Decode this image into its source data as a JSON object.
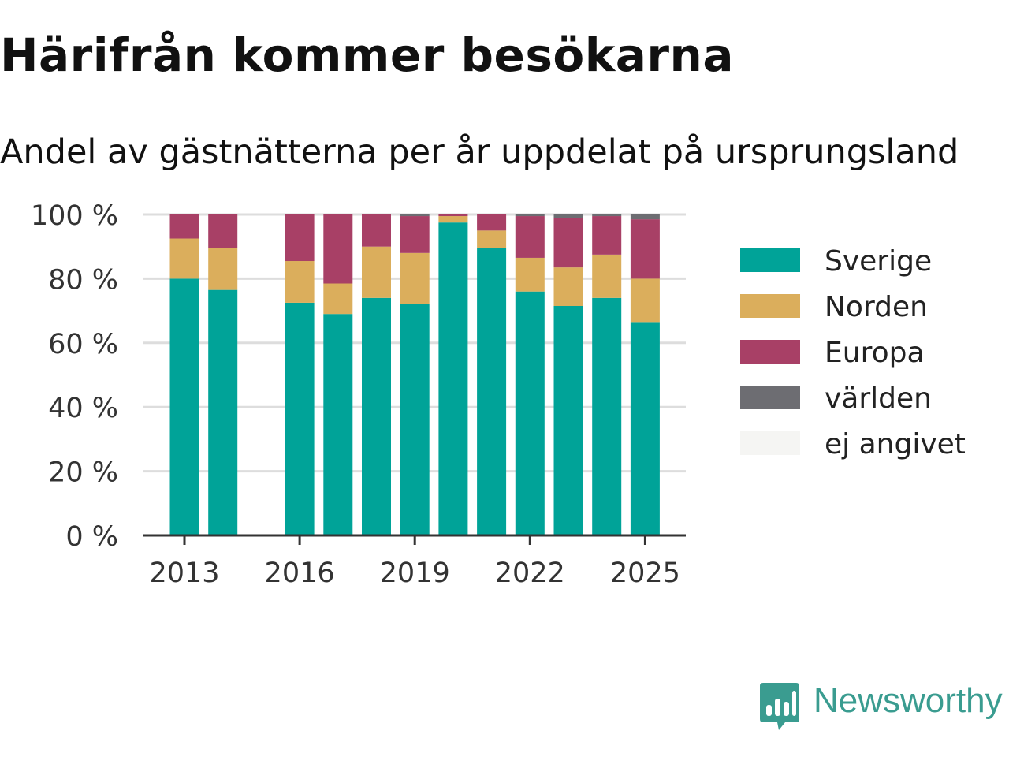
{
  "header": {
    "title": "Härifrån kommer besökarna",
    "subtitle": "Andel av gästnätterna per år uppdelat på ursprungsland"
  },
  "brand": {
    "name": "Newsworthy",
    "color": "#3a9c90",
    "icon": "bar-chart-speech-bubble-icon"
  },
  "chart_data": {
    "type": "bar",
    "stacked": true,
    "x": [
      2013,
      2014,
      2015,
      2016,
      2017,
      2018,
      2019,
      2020,
      2021,
      2022,
      2023,
      2024,
      2025
    ],
    "x_tick_labels": [
      "2013",
      "2016",
      "2019",
      "2022",
      "2025"
    ],
    "x_tick_values": [
      2013,
      2016,
      2019,
      2022,
      2025
    ],
    "y_tick_labels": [
      "0 %",
      "20 %",
      "40 %",
      "60 %",
      "80 %",
      "100 %"
    ],
    "y_tick_values": [
      0,
      20,
      40,
      60,
      80,
      100
    ],
    "ylim": [
      0,
      100
    ],
    "grid": true,
    "legend_position": "right",
    "series": [
      {
        "name": "Sverige",
        "color": "#00a398",
        "values": [
          80,
          76.5,
          null,
          72.5,
          69,
          74,
          72,
          97.5,
          89.5,
          76,
          71.5,
          74,
          66.5
        ]
      },
      {
        "name": "Norden",
        "color": "#dbae5c",
        "values": [
          12.5,
          13,
          null,
          13,
          9.5,
          16,
          16,
          2,
          5.5,
          10.5,
          12,
          13.5,
          13.5
        ]
      },
      {
        "name": "Europa",
        "color": "#a84066",
        "values": [
          7.5,
          10.5,
          null,
          14.5,
          21.5,
          10,
          11.5,
          0.5,
          5,
          13,
          15.5,
          12,
          18.5
        ]
      },
      {
        "name": "världen",
        "color": "#6d6d72",
        "values": [
          0,
          0,
          null,
          0,
          0,
          0,
          0.5,
          0,
          0,
          0.5,
          1,
          0.5,
          1.5
        ]
      },
      {
        "name": "ej angivet",
        "color": "#f5f5f3",
        "values": [
          0,
          0,
          null,
          0,
          0,
          0,
          0,
          0,
          0,
          0,
          0,
          0,
          0
        ]
      }
    ]
  }
}
